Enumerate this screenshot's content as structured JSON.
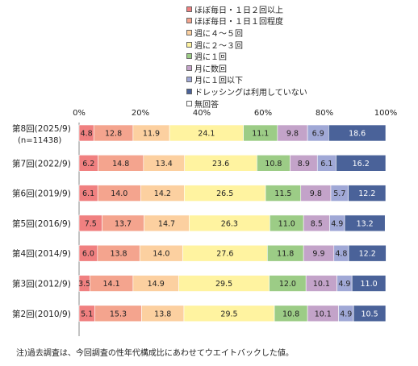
{
  "chart_data": {
    "type": "bar",
    "orientation": "horizontal",
    "stacked": true,
    "xlim": [
      0,
      100
    ],
    "x_ticks": [
      "0%",
      "20%",
      "40%",
      "60%",
      "80%",
      "100%"
    ],
    "legend_position": "top",
    "categories": [
      {
        "label": "第8回(2025/9)",
        "sublabel": "(n=11438)"
      },
      {
        "label": "第7回(2022/9)"
      },
      {
        "label": "第6回(2019/9)"
      },
      {
        "label": "第5回(2016/9)"
      },
      {
        "label": "第4回(2014/9)"
      },
      {
        "label": "第3回(2012/9)"
      },
      {
        "label": "第2回(2010/9)"
      }
    ],
    "series": [
      {
        "name": "ほぼ毎日・１日２回以上",
        "color": "#f08080",
        "values": [
          4.8,
          6.2,
          6.1,
          7.5,
          6.0,
          3.5,
          5.1
        ]
      },
      {
        "name": "ほぼ毎日・１日１回程度",
        "color": "#f4a48e",
        "values": [
          12.8,
          14.8,
          14.0,
          13.7,
          13.8,
          14.1,
          15.3
        ]
      },
      {
        "name": "週に４～５回",
        "color": "#fcd0a0",
        "values": [
          11.9,
          13.4,
          14.2,
          14.7,
          14.0,
          14.9,
          13.8
        ]
      },
      {
        "name": "週に２～３回",
        "color": "#fff3a0",
        "values": [
          24.1,
          23.6,
          26.5,
          26.3,
          27.6,
          29.5,
          29.5
        ]
      },
      {
        "name": "週に１回",
        "color": "#9ccc86",
        "values": [
          11.1,
          10.8,
          11.5,
          11.0,
          11.8,
          12.0,
          10.8
        ]
      },
      {
        "name": "月に数回",
        "color": "#c3a3c9",
        "values": [
          9.8,
          8.9,
          9.8,
          8.5,
          9.9,
          10.1,
          10.1
        ]
      },
      {
        "name": "月に１回以下",
        "color": "#a0a8d6",
        "values": [
          6.9,
          6.1,
          5.7,
          4.9,
          4.8,
          4.9,
          4.9
        ]
      },
      {
        "name": "ドレッシングは利用していない",
        "color": "#4a6299",
        "values": [
          18.6,
          16.2,
          12.2,
          13.2,
          12.2,
          11.0,
          10.5
        ]
      },
      {
        "name": "無回答",
        "color": "#ffffff",
        "values": [
          0,
          0,
          0,
          0,
          0,
          0,
          0
        ]
      }
    ]
  },
  "note": "注)過去調査は、今回調査の性年代構成比にあわせてウエイトバックした値。"
}
